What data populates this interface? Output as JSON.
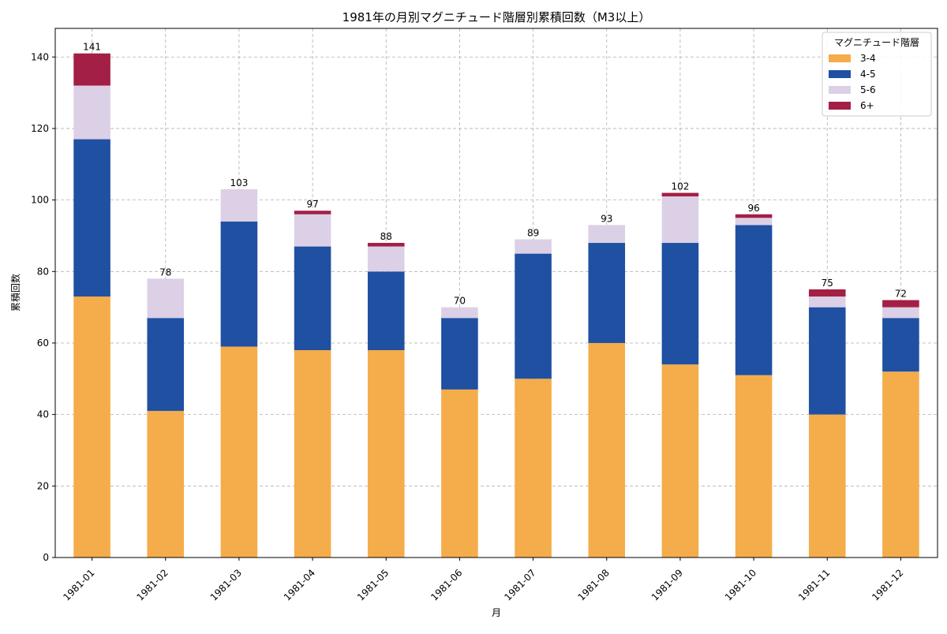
{
  "chart_data": {
    "type": "bar",
    "stacked": true,
    "title": "1981年の月別マグニチュード階層別累積回数（M3以上）",
    "xlabel": "月",
    "ylabel": "累積回数",
    "ylim": [
      0,
      148
    ],
    "yticks": [
      0,
      20,
      40,
      60,
      80,
      100,
      120,
      140
    ],
    "grid": true,
    "legend": {
      "title": "マグニチュード階層",
      "placement": "top-right"
    },
    "categories": [
      "1981-01",
      "1981-02",
      "1981-03",
      "1981-04",
      "1981-05",
      "1981-06",
      "1981-07",
      "1981-08",
      "1981-09",
      "1981-10",
      "1981-11",
      "1981-12"
    ],
    "series": [
      {
        "name": "3-4",
        "color": "#f5ac4a",
        "values": [
          73,
          41,
          59,
          58,
          58,
          47,
          50,
          60,
          54,
          51,
          40,
          52
        ]
      },
      {
        "name": "4-5",
        "color": "#1f50a2",
        "values": [
          44,
          26,
          35,
          29,
          22,
          20,
          35,
          28,
          34,
          42,
          30,
          15
        ]
      },
      {
        "name": "5-6",
        "color": "#dcd0e6",
        "values": [
          15,
          11,
          9,
          9,
          7,
          3,
          4,
          5,
          13,
          2,
          3,
          3
        ]
      },
      {
        "name": "6+",
        "color": "#a31f45",
        "values": [
          9,
          0,
          0,
          1,
          1,
          0,
          0,
          0,
          1,
          1,
          2,
          2
        ]
      }
    ],
    "totals": [
      141,
      78,
      103,
      97,
      88,
      70,
      89,
      93,
      102,
      96,
      75,
      72
    ]
  }
}
